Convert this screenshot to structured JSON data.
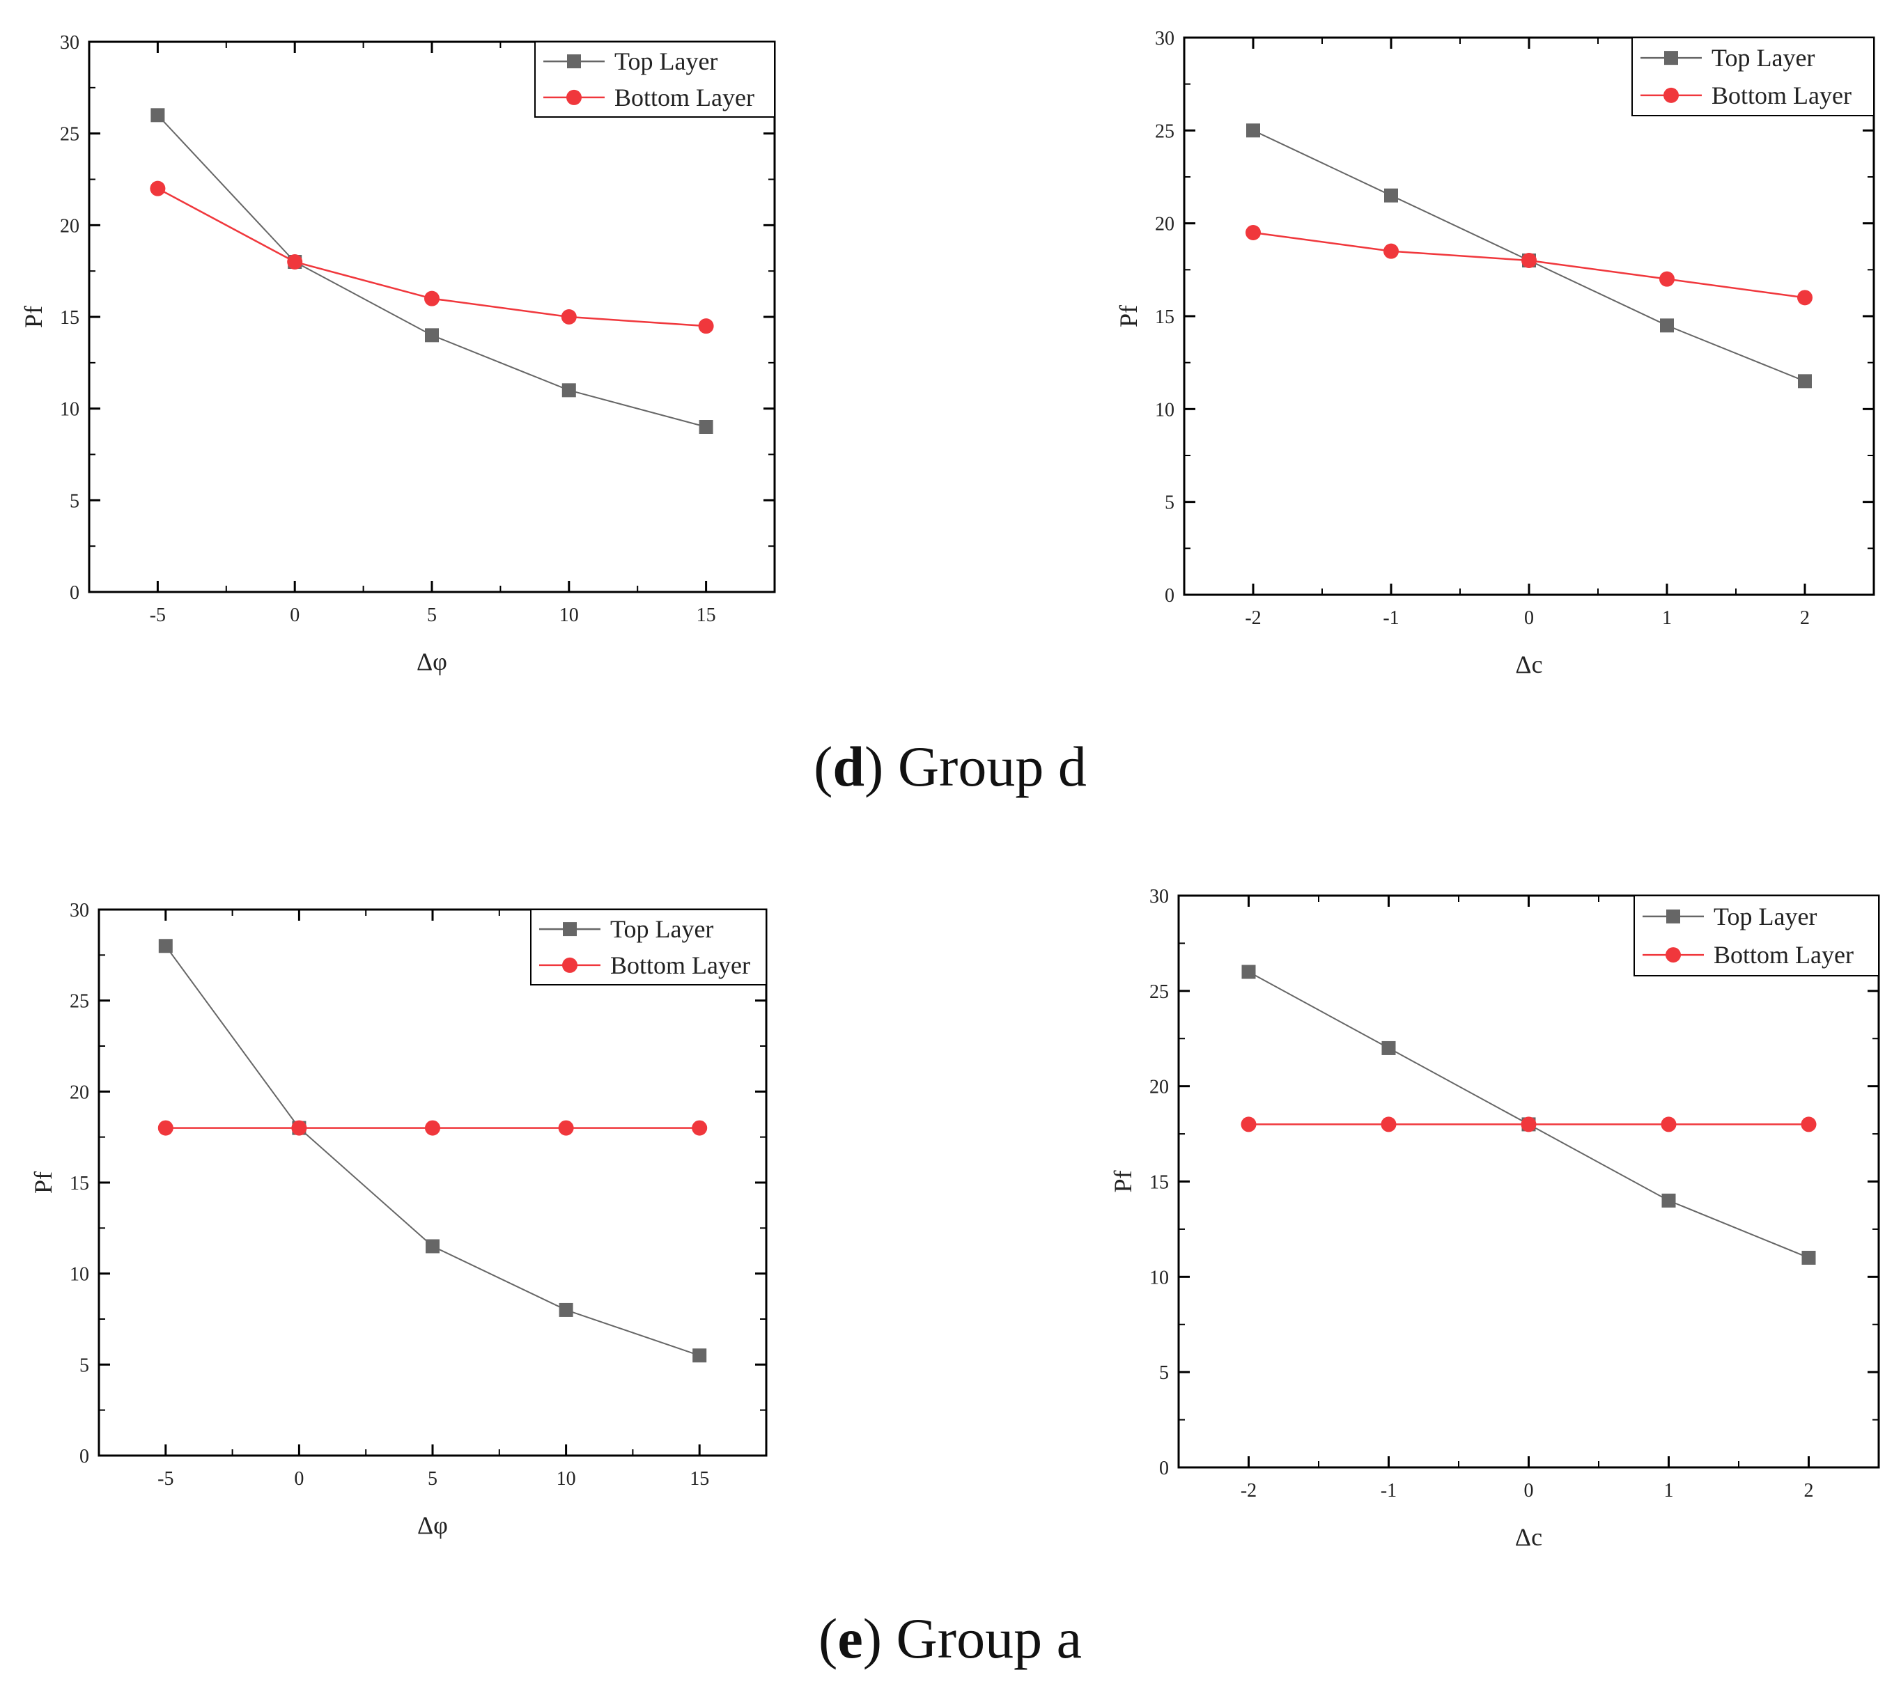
{
  "colors": {
    "top_layer": "#666666",
    "bottom_layer": "#f0373c",
    "axis": "#000000"
  },
  "figure": {
    "captions": [
      {
        "label": "d",
        "text": " Group d"
      },
      {
        "label": "e",
        "text": " Group a"
      }
    ]
  },
  "chart_data": [
    {
      "type": "line",
      "group": "d",
      "title": "",
      "xlabel": "Δφ",
      "ylabel": "Pf",
      "x": [
        -5,
        0,
        5,
        10,
        15
      ],
      "x_tick_labels": [
        "-5",
        "0",
        "5",
        "10",
        "15"
      ],
      "xlim": [
        -7.5,
        17.5
      ],
      "ylim": [
        0,
        30
      ],
      "y_ticks": [
        0,
        5,
        10,
        15,
        20,
        25,
        30
      ],
      "legend_position": "top-right",
      "series": [
        {
          "name": "Top Layer",
          "marker": "square",
          "color": "#666666",
          "values": [
            26,
            18,
            14,
            11,
            9
          ]
        },
        {
          "name": "Bottom Layer",
          "marker": "circle",
          "color": "#f0373c",
          "values": [
            22,
            18,
            16,
            15,
            14.5
          ]
        }
      ]
    },
    {
      "type": "line",
      "group": "d",
      "title": "",
      "xlabel": "Δc",
      "ylabel": "Pf",
      "x": [
        -2,
        -1,
        0,
        1,
        2
      ],
      "x_tick_labels": [
        "-2",
        "-1",
        "0",
        "1",
        "2"
      ],
      "xlim": [
        -2.5,
        2.5
      ],
      "ylim": [
        0,
        30
      ],
      "y_ticks": [
        0,
        5,
        10,
        15,
        20,
        25,
        30
      ],
      "legend_position": "top-right",
      "series": [
        {
          "name": "Top Layer",
          "marker": "square",
          "color": "#666666",
          "values": [
            25,
            21.5,
            18,
            14.5,
            11.5
          ]
        },
        {
          "name": "Bottom Layer",
          "marker": "circle",
          "color": "#f0373c",
          "values": [
            19.5,
            18.5,
            18,
            17,
            16
          ]
        }
      ]
    },
    {
      "type": "line",
      "group": "a",
      "title": "",
      "xlabel": "Δφ",
      "ylabel": "Pf",
      "x": [
        -5,
        0,
        5,
        10,
        15
      ],
      "x_tick_labels": [
        "-5",
        "0",
        "5",
        "10",
        "15"
      ],
      "xlim": [
        -7.5,
        17.5
      ],
      "ylim": [
        0,
        30
      ],
      "y_ticks": [
        0,
        5,
        10,
        15,
        20,
        25,
        30
      ],
      "legend_position": "top-right",
      "series": [
        {
          "name": "Top Layer",
          "marker": "square",
          "color": "#666666",
          "values": [
            28,
            18,
            11.5,
            8,
            5.5
          ]
        },
        {
          "name": "Bottom Layer",
          "marker": "circle",
          "color": "#f0373c",
          "values": [
            18,
            18,
            18,
            18,
            18
          ]
        }
      ]
    },
    {
      "type": "line",
      "group": "a",
      "title": "",
      "xlabel": "Δc",
      "ylabel": "Pf",
      "x": [
        -2,
        -1,
        0,
        1,
        2
      ],
      "x_tick_labels": [
        "-2",
        "-1",
        "0",
        "1",
        "2"
      ],
      "xlim": [
        -2.5,
        2.5
      ],
      "ylim": [
        0,
        30
      ],
      "y_ticks": [
        0,
        5,
        10,
        15,
        20,
        25,
        30
      ],
      "legend_position": "top-right",
      "series": [
        {
          "name": "Top Layer",
          "marker": "square",
          "color": "#666666",
          "values": [
            26,
            22,
            18,
            14,
            11
          ]
        },
        {
          "name": "Bottom Layer",
          "marker": "circle",
          "color": "#f0373c",
          "values": [
            18,
            18,
            18,
            18,
            18
          ]
        }
      ]
    }
  ]
}
